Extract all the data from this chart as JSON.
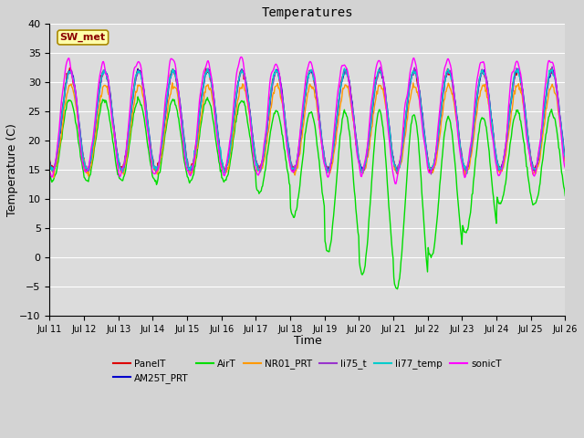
{
  "title": "Temperatures",
  "xlabel": "Time",
  "ylabel": "Temperature (C)",
  "ylim": [
    -10,
    40
  ],
  "annotation": "SW_met",
  "x_tick_labels": [
    "Jul 11",
    "Jul 12",
    "Jul 13",
    "Jul 14",
    "Jul 15",
    "Jul 16",
    "Jul 17",
    "Jul 18",
    "Jul 19",
    "Jul 20",
    "Jul 21",
    "Jul 22",
    "Jul 23",
    "Jul 24",
    "Jul 25",
    "Jul 26"
  ],
  "series": {
    "PanelT": {
      "color": "#dd0000",
      "lw": 1.0
    },
    "AM25T_PRT": {
      "color": "#0000cc",
      "lw": 1.0
    },
    "AirT": {
      "color": "#00dd00",
      "lw": 1.0
    },
    "NR01_PRT": {
      "color": "#ff9900",
      "lw": 1.0
    },
    "li75_t": {
      "color": "#9933cc",
      "lw": 1.0
    },
    "li77_temp": {
      "color": "#00cccc",
      "lw": 1.0
    },
    "sonicT": {
      "color": "#ff00ff",
      "lw": 1.0
    }
  },
  "legend_order": [
    "PanelT",
    "AM25T_PRT",
    "AirT",
    "NR01_PRT",
    "li75_t",
    "li77_temp",
    "sonicT"
  ],
  "plot_bg_color": "#dcdcdc",
  "fig_bg_color": "#d3d3d3",
  "grid_color": "#ffffff"
}
